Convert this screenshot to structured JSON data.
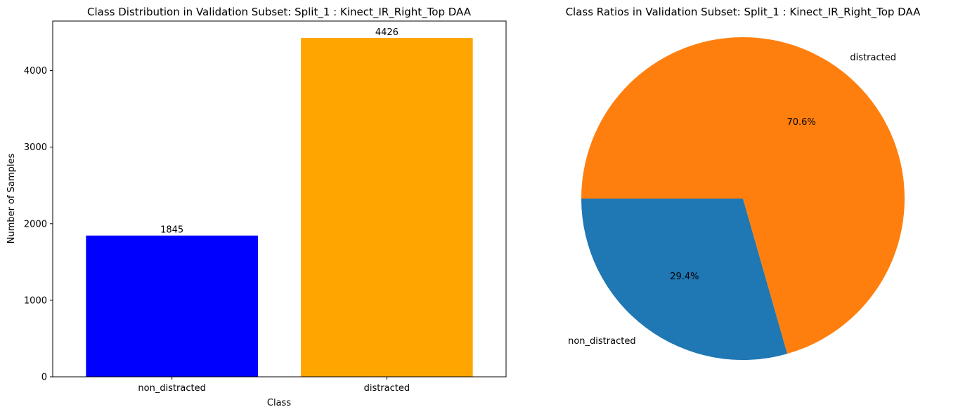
{
  "chart_data": [
    {
      "type": "bar",
      "title": "Class Distribution in Validation Subset: Split_1 : Kinect_IR_Right_Top DAA",
      "xlabel": "Class",
      "ylabel": "Number of Samples",
      "categories": [
        "non_distracted",
        "distracted"
      ],
      "values": [
        1845,
        4426
      ],
      "colors": [
        "#0000ff",
        "#ffa500"
      ],
      "yticks": [
        0,
        1000,
        2000,
        3000,
        4000
      ],
      "ylim": [
        0,
        4647
      ],
      "data_labels": [
        "1845",
        "4426"
      ],
      "grid": false
    },
    {
      "type": "pie",
      "title": "Class Ratios in Validation Subset: Split_1 : Kinect_IR_Right_Top DAA",
      "labels": [
        "non_distracted",
        "distracted"
      ],
      "values": [
        1845,
        4426
      ],
      "percent_labels": [
        "29.4%",
        "70.6%"
      ],
      "colors": [
        "#1f77b4",
        "#ff7f0e"
      ],
      "start_angle": 180
    }
  ]
}
